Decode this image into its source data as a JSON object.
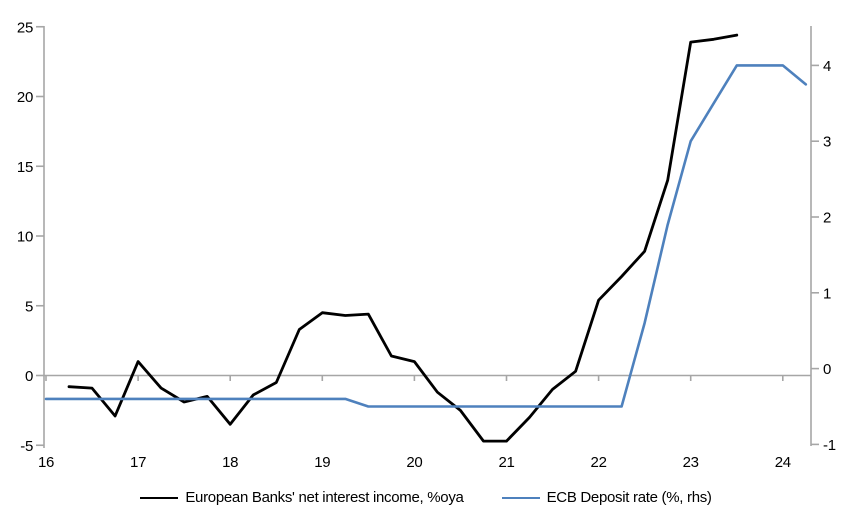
{
  "legend": {
    "items": [
      {
        "label": "European Banks' net interest income, %oya",
        "color": "#000000"
      },
      {
        "label": "ECB Deposit rate (%, rhs)",
        "color": "#4e81bd"
      }
    ]
  },
  "colors": {
    "axis": "#a6a6a6",
    "series_left": "#000000",
    "series_right": "#4e81bd",
    "text": "#000000"
  },
  "chart_data": {
    "type": "line",
    "title": "",
    "xlabel": "",
    "ylabel_left": "",
    "ylabel_right": "",
    "x_axis": {
      "ticks": [
        16,
        17,
        18,
        19,
        20,
        21,
        22,
        23,
        24
      ],
      "range": [
        16,
        24.3
      ]
    },
    "y_left_axis": {
      "ticks": [
        25,
        20,
        15,
        10,
        5,
        0,
        -5
      ],
      "range": [
        -5.2,
        25.1
      ]
    },
    "y_right_axis": {
      "ticks": [
        4,
        3,
        2,
        1,
        0,
        -1
      ],
      "range": [
        -1.05,
        4.5
      ]
    },
    "grid": "zero-line-only",
    "legend_position": "bottom",
    "series": [
      {
        "name": "European Banks' net interest income, %oya",
        "axis": "left",
        "color": "#000000",
        "points": [
          [
            16.25,
            -0.8
          ],
          [
            16.5,
            -0.9
          ],
          [
            16.75,
            -2.9
          ],
          [
            17.0,
            1.0
          ],
          [
            17.25,
            -0.9
          ],
          [
            17.5,
            -1.9
          ],
          [
            17.75,
            -1.5
          ],
          [
            18.0,
            -3.5
          ],
          [
            18.25,
            -1.4
          ],
          [
            18.5,
            -0.5
          ],
          [
            18.75,
            3.3
          ],
          [
            19.0,
            4.5
          ],
          [
            19.25,
            4.3
          ],
          [
            19.5,
            4.4
          ],
          [
            19.75,
            1.4
          ],
          [
            20.0,
            1.0
          ],
          [
            20.25,
            -1.2
          ],
          [
            20.5,
            -2.5
          ],
          [
            20.75,
            -4.7
          ],
          [
            21.0,
            -4.7
          ],
          [
            21.25,
            -3.0
          ],
          [
            21.5,
            -1.0
          ],
          [
            21.75,
            0.3
          ],
          [
            22.0,
            5.4
          ],
          [
            22.25,
            7.1
          ],
          [
            22.5,
            8.9
          ],
          [
            22.75,
            14.0
          ],
          [
            23.0,
            23.9
          ],
          [
            23.25,
            24.1
          ],
          [
            23.5,
            24.4
          ]
        ]
      },
      {
        "name": "ECB Deposit rate (%, rhs)",
        "axis": "right",
        "color": "#4e81bd",
        "points": [
          [
            16.0,
            -0.4
          ],
          [
            19.25,
            -0.4
          ],
          [
            19.5,
            -0.5
          ],
          [
            22.25,
            -0.5
          ],
          [
            22.5,
            0.6
          ],
          [
            22.75,
            1.9
          ],
          [
            23.0,
            3.0
          ],
          [
            23.25,
            3.5
          ],
          [
            23.5,
            4.0
          ],
          [
            23.75,
            4.0
          ],
          [
            24.0,
            4.0
          ],
          [
            24.25,
            3.75
          ]
        ]
      }
    ]
  }
}
